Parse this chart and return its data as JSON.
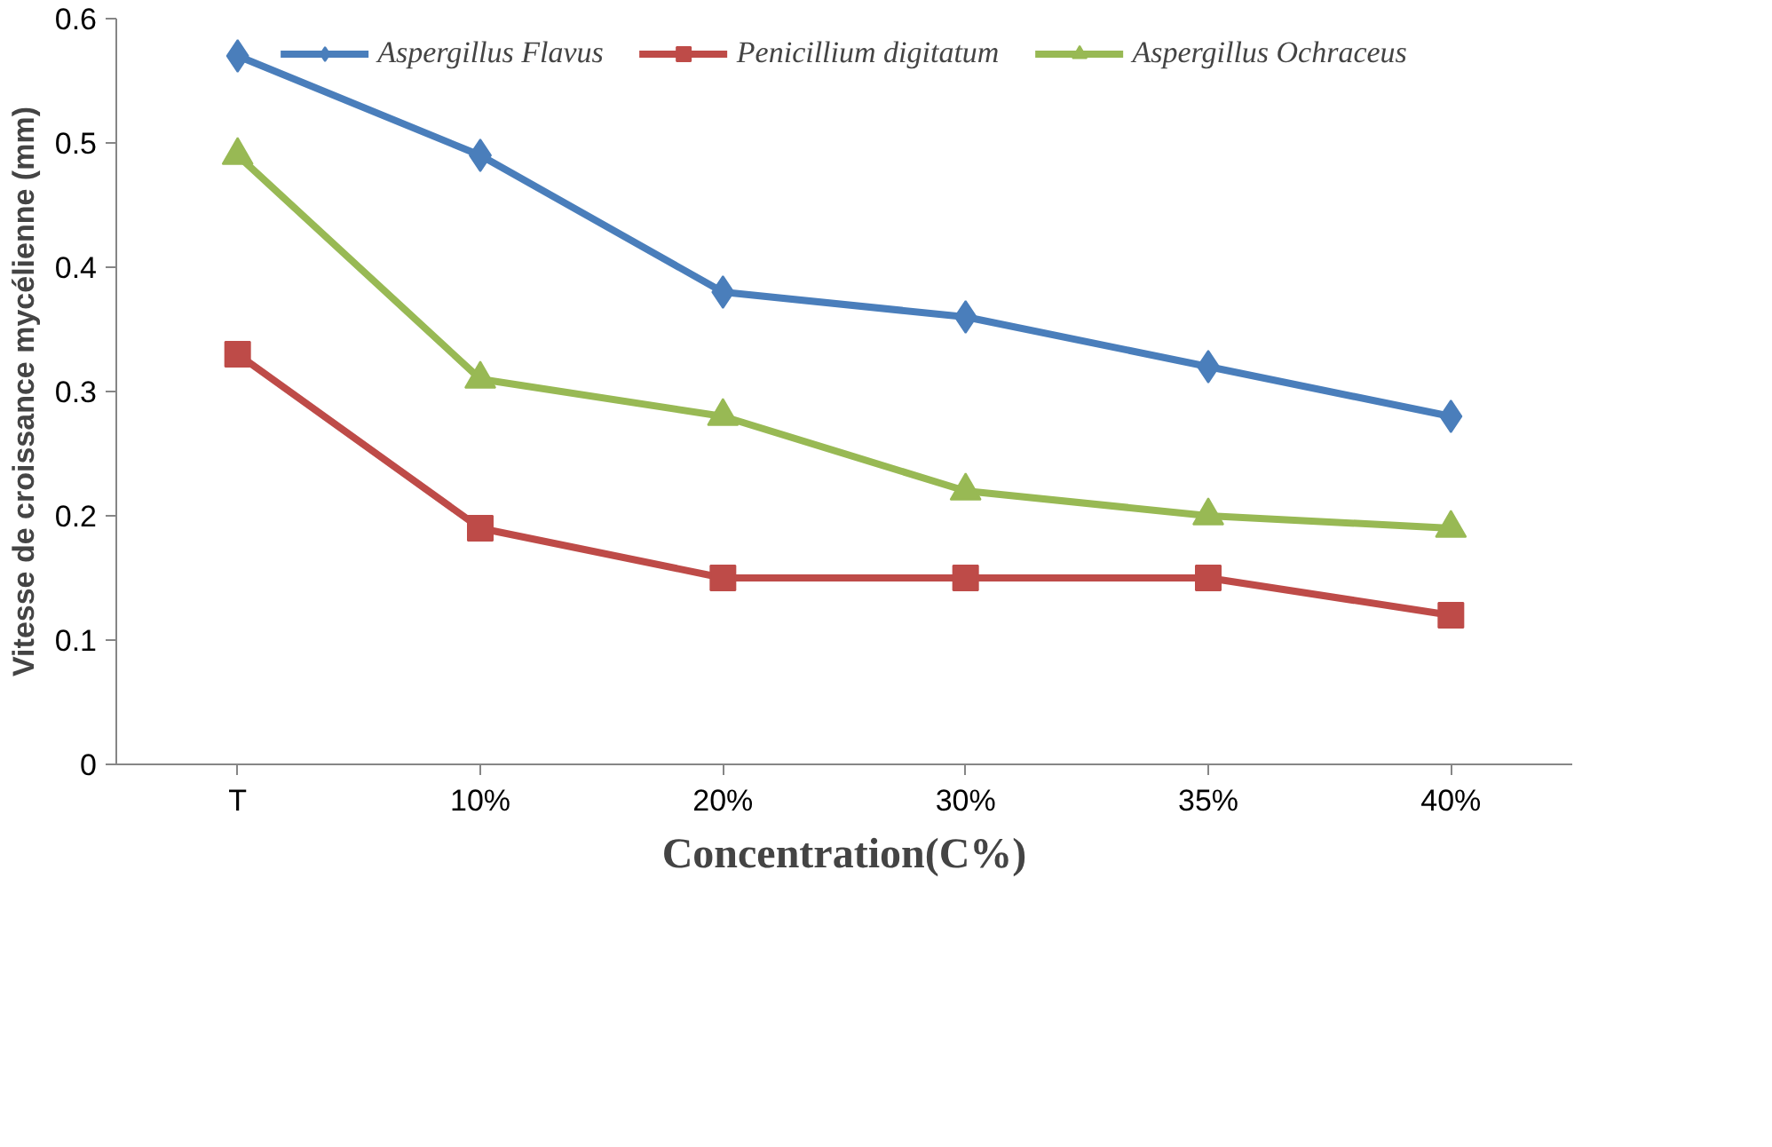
{
  "chart_data": {
    "type": "line",
    "xlabel": "Concentration(C%)",
    "ylabel": "Vitesse de croissance mycélienne (mm)",
    "categories": [
      "T",
      "10%",
      "20%",
      "30%",
      "35%",
      "40%"
    ],
    "series": [
      {
        "name": "Aspergillus Flavus",
        "color": "#4a7ebb",
        "marker": "diamond",
        "values": [
          0.57,
          0.49,
          0.38,
          0.36,
          0.32,
          0.28
        ]
      },
      {
        "name": "Penicillium digitatum",
        "color": "#be4b48",
        "marker": "square",
        "values": [
          0.33,
          0.19,
          0.15,
          0.15,
          0.15,
          0.12
        ]
      },
      {
        "name": "Aspergillus Ochraceus",
        "color": "#98b954",
        "marker": "triangle",
        "values": [
          0.49,
          0.31,
          0.28,
          0.22,
          0.2,
          0.19
        ]
      }
    ],
    "ylim": [
      0,
      0.6
    ],
    "yticks": [
      0,
      0.1,
      0.2,
      0.3,
      0.4,
      0.5,
      0.6
    ],
    "grid": false,
    "legend": "top",
    "line_style": "solid"
  }
}
